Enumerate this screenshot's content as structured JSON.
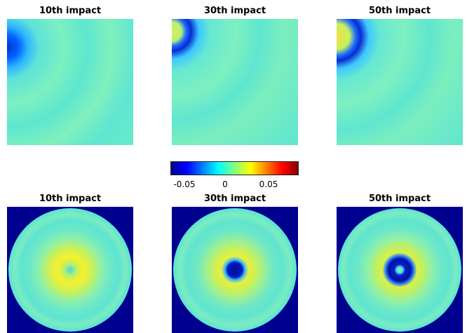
{
  "chart_data": {
    "type": "heatmap",
    "colormap": "jet",
    "color_range": [
      -0.08,
      0.08
    ],
    "colorbar": {
      "ticks": [
        -0.05,
        0,
        0.05
      ],
      "tick_labels": [
        "-0.05",
        "0",
        "0.05"
      ]
    },
    "panels": [
      {
        "id": "top-10",
        "title": "10th impact",
        "view": "quarter-domain"
      },
      {
        "id": "top-30",
        "title": "30th impact",
        "view": "quarter-domain"
      },
      {
        "id": "top-50",
        "title": "50th impact",
        "view": "quarter-domain"
      },
      {
        "id": "bottom-10",
        "title": "10th impact",
        "view": "full-disc"
      },
      {
        "id": "bottom-30",
        "title": "30th impact",
        "view": "full-disc"
      },
      {
        "id": "bottom-50",
        "title": "50th impact",
        "view": "full-disc"
      }
    ]
  }
}
